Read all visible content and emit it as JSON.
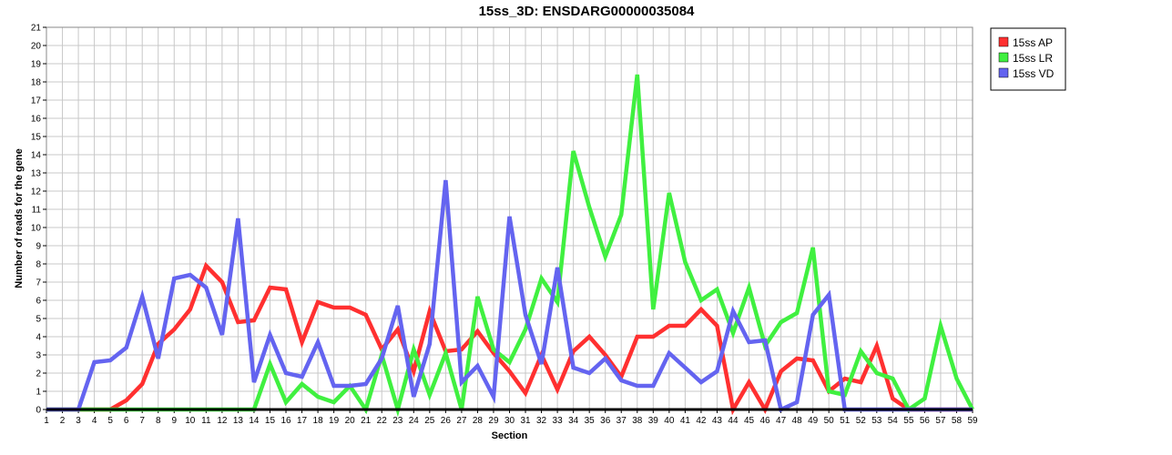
{
  "chart_data": {
    "type": "line",
    "title": "15ss_3D: ENSDARG00000035084",
    "xlabel": "Section",
    "ylabel": "Number of reads for the gene",
    "xlim": [
      1,
      59
    ],
    "ylim": [
      0,
      21
    ],
    "grid": true,
    "legend_position": "top-right",
    "x": [
      1,
      2,
      3,
      4,
      5,
      6,
      7,
      8,
      9,
      10,
      11,
      12,
      13,
      14,
      15,
      16,
      17,
      18,
      19,
      20,
      21,
      22,
      23,
      24,
      25,
      26,
      27,
      28,
      29,
      30,
      31,
      32,
      33,
      34,
      35,
      36,
      37,
      38,
      39,
      40,
      41,
      42,
      43,
      44,
      45,
      46,
      47,
      48,
      49,
      50,
      51,
      52,
      53,
      54,
      55,
      56,
      57,
      58,
      59
    ],
    "series": [
      {
        "name": "15ss AP",
        "color": "#ff3030",
        "values": [
          0,
          0,
          0,
          0,
          0,
          0.5,
          1.4,
          3.6,
          4.4,
          5.5,
          7.9,
          7.0,
          4.8,
          4.9,
          6.7,
          6.6,
          3.7,
          5.9,
          5.6,
          5.6,
          5.2,
          3.3,
          4.4,
          2.1,
          5.4,
          3.2,
          3.3,
          4.3,
          3.1,
          2.1,
          0.9,
          3.0,
          1.1,
          3.2,
          4.0,
          3.0,
          1.8,
          4.0,
          4.0,
          4.6,
          4.6,
          5.5,
          4.6,
          0,
          1.5,
          0,
          2.1,
          2.8,
          2.7,
          1.0,
          1.7,
          1.5,
          3.5,
          0.6,
          0,
          0,
          0,
          0,
          0
        ]
      },
      {
        "name": "15ss LR",
        "color": "#40f040",
        "values": [
          0,
          0,
          0,
          0,
          0,
          0,
          0,
          0,
          0,
          0,
          0,
          0,
          0,
          0,
          2.5,
          0.4,
          1.4,
          0.7,
          0.4,
          1.3,
          0,
          3.0,
          0,
          3.3,
          0.8,
          3.1,
          0,
          6.2,
          3.3,
          2.6,
          4.4,
          7.2,
          5.9,
          14.2,
          11.1,
          8.4,
          10.7,
          18.4,
          5.5,
          11.9,
          8.1,
          6.0,
          6.6,
          4.2,
          6.7,
          3.5,
          4.8,
          5.3,
          8.9,
          1.0,
          0.8,
          3.2,
          2.0,
          1.7,
          0,
          0.6,
          4.6,
          1.7,
          0
        ]
      },
      {
        "name": "15ss VD",
        "color": "#6464f0",
        "values": [
          0,
          0,
          0,
          2.6,
          2.7,
          3.4,
          6.2,
          2.8,
          7.2,
          7.4,
          6.7,
          4.1,
          10.5,
          1.5,
          4.1,
          2.0,
          1.8,
          3.7,
          1.3,
          1.3,
          1.4,
          2.8,
          5.7,
          0.7,
          3.6,
          12.6,
          1.5,
          2.4,
          0.7,
          10.6,
          5.2,
          2.5,
          7.8,
          2.3,
          2.0,
          2.8,
          1.6,
          1.3,
          1.3,
          3.1,
          2.3,
          1.5,
          2.1,
          5.4,
          3.7,
          3.8,
          0,
          0.4,
          5.2,
          6.3,
          0,
          0,
          0,
          0,
          0,
          0,
          0,
          0,
          0
        ]
      }
    ]
  }
}
